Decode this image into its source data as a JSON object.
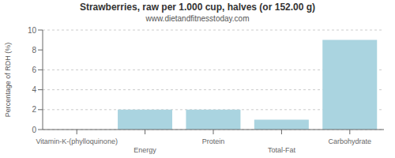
{
  "chart_data": {
    "type": "bar",
    "title": "Strawberries, raw per 1.000 cup, halves (or 152.00 g)",
    "subtitle": "www.dietandfitnesstoday.com",
    "categories": [
      "Vitamin-K-(phylloquinone)",
      "Energy",
      "Protein",
      "Total-Fat",
      "Carbohydrate"
    ],
    "values": [
      0,
      2,
      2,
      1,
      9
    ],
    "color": "#aad4e0",
    "ylabel": "Percentage of RDH (%)",
    "ylim": [
      0,
      10
    ],
    "yticks": [
      0,
      2,
      4,
      6,
      8,
      10
    ],
    "grid": true
  }
}
